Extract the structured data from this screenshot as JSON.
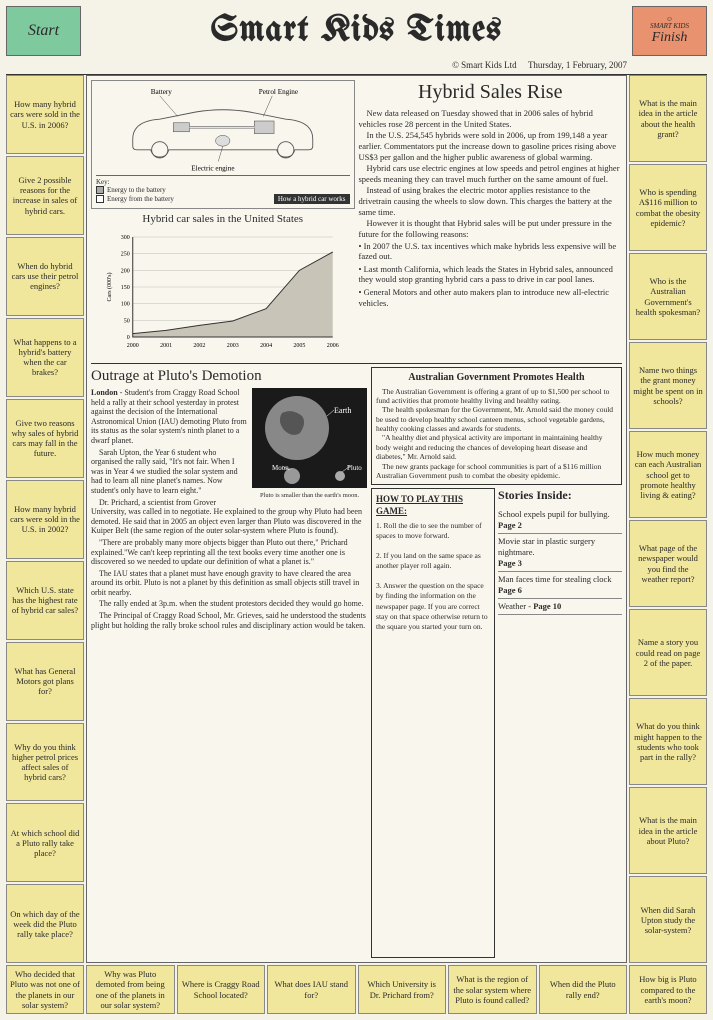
{
  "header": {
    "start": "Start",
    "title": "Smart Kids Times",
    "finish": "Finish",
    "logo_text": "SMART KIDS",
    "copyright": "© Smart Kids Ltd",
    "date": "Thursday, 1 February, 2007"
  },
  "left_questions": [
    "How many hybrid cars were sold in the U.S. in 2006?",
    "Give 2 possible reasons for the increase in sales of hybrid cars.",
    "When do hybrid cars use their petrol engines?",
    "What happens to a hybrid's battery when the car brakes?",
    "Give two reasons why sales of hybrid cars may fall in the future.",
    "How many hybrid cars were sold in the U.S. in 2002?",
    "Which U.S. state has the highest rate of hybrid car sales?",
    "What has General Motors got plans for?",
    "Why do you think higher petrol prices affect sales of hybrid cars?",
    "At which school did a Pluto rally take place?",
    "On which day of the week did the Pluto rally take place?",
    "Who decided that Pluto was not one of the planets in our solar system?"
  ],
  "right_questions": [
    "What is the main idea in the article about the health grant?",
    "Who is spending A$116 million to combat the obesity epidemic?",
    "Who is the Australian Government's health spokesman?",
    "Name two things the grant money might be spent on in schools?",
    "How much money can each Australian school get to promote healthy living & eating?",
    "What page of the newspaper would you find the weather report?",
    "Name a story you could read on page 2 of the paper.",
    "What do you think might happen to the students who took part in the rally?",
    "What is the main idea in the article about Pluto?",
    "When did Sarah Upton study the solar-system?",
    "How big is Pluto compared to the earth's moon?"
  ],
  "bottom_questions": [
    "Why was Pluto demoted from being one of the planets in our solar system?",
    "Where is Craggy Road School located?",
    "What does IAU stand for?",
    "Which University is Dr. Prichard from?",
    "What is the region of the solar system where Pluto is found called?",
    "When did the Pluto rally end?"
  ],
  "diagram": {
    "battery_label": "Battery",
    "petrol_label": "Petrol Engine",
    "electric_label": "Electric engine",
    "key_label": "Key:",
    "key1": "Energy to the battery",
    "key2": "Energy from the battery",
    "caption": "How a hybrid car works",
    "key1_color": "#aaaaaa",
    "key2_color": "#ffffff"
  },
  "hybrid": {
    "title": "Hybrid Sales Rise",
    "p1": "New data released on Tuesday showed that in 2006 sales of hybrid vehicles rose 28 percent in the United States.",
    "p2": "In the U.S. 254,545 hybrids were sold in 2006, up from 199,148 a year earlier. Commentators put the increase down to gasoline prices rising above US$3 per gallon and the higher public awareness of global warming.",
    "p3": "Hybrid cars use electric engines at low speeds and petrol engines at higher speeds meaning they can travel much further on the same amount of fuel.",
    "p4": "Instead of using brakes the electric motor applies resistance to the drivetrain causing the wheels to slow down. This charges the battery at the same time.",
    "p5": "However it is thought that Hybrid sales will be put under pressure in the future for the following reasons:",
    "b1": "• In 2007 the U.S. tax incentives which make hybrids less expensive will be fazed out.",
    "b2": "• Last month California, which leads the States in Hybrid sales, announced they would stop granting hybrid cars a pass to drive in car pool lanes.",
    "b3": "• General Motors and other auto makers plan to introduce new all-electric vehicles."
  },
  "chart": {
    "title": "Hybrid car sales in the United States",
    "ylabel": "Cars (000's)",
    "years": [
      "2000",
      "2001",
      "2002",
      "2003",
      "2004",
      "2005",
      "2006"
    ],
    "values": [
      10,
      20,
      35,
      48,
      85,
      200,
      255
    ],
    "ymax": 300,
    "ytick": 50,
    "fill_color": "#c8c5b8",
    "line_color": "#333333",
    "grid_color": "#999999"
  },
  "pluto": {
    "title": "Outrage at Pluto's Demotion",
    "p1_lead": "London",
    "p1": " - Student's from Craggy Road School held a rally at their school yesterday in protest against the decision of the International Astronomical Union (IAU) demoting Pluto from its status as the solar system's ninth planet to a dwarf planet.",
    "p2": "Sarah Upton, the Year 6 student who organised the rally said, \"It's not fair. When I was in Year 4 we studied the solar system and had to learn all nine planet's names. Now student's only have to learn eight.\"",
    "p3": "Dr. Prichard, a scientist from Grover University, was called in to negotiate. He explained to the group why Pluto had been demoted. He said that in 2005 an object even larger than Pluto was discovered in the Kuiper Belt (the same region of the outer solar-system where Pluto is found).",
    "p4": "\"There are probably many more objects bigger than Pluto out there,\" Prichard explained.\"We can't keep reprinting all the text books every time another one is discovered so we needed to update our definition of what a planet is.\"",
    "p5": "The IAU states that a planet must have enough gravity to have cleared the area around its orbit. Pluto is not a planet by this definition as small objects still travel in orbit nearby.",
    "p6": "The rally ended at 3p.m. when the student protestors decided they would go home.",
    "p7": "The Principal of Craggy Road School, Mr. Grieves, said he understood the students plight but holding the rally broke school rules and disciplinary action would be taken.",
    "img_earth": "Earth",
    "img_moon": "Moon",
    "img_pluto": "Pluto",
    "img_cap": "Pluto is smaller than the earth's moon."
  },
  "health": {
    "title": "Australian Government Promotes Health",
    "p1": "The Australian Government is offering a grant of up to $1,500 per school to fund activities that promote healthy living and healthy eating.",
    "p2": "The health spokesman for the Government, Mr. Arnold said the money could be used to develop healthy school canteen menus, school vegetable gardens, healthy cooking classes and awards for students.",
    "p3": "\"A healthy diet and physical activity are important in maintaining healthy body weight and reducing the chances of developing heart disease and diabetes,\" Mr. Arnold said.",
    "p4": "The new grants package for school communities is part of a $116 million Australian Government push to combat the obesity epidemic."
  },
  "howto": {
    "title": "HOW TO PLAY THIS GAME:",
    "s1": "1. Roll the die to see the number of spaces to move forward.",
    "s2": "2. If you land on the same space as another player roll again.",
    "s3": "3. Answer the question on the space by finding the information on the newspaper page. If you are correct stay on that space otherwise return to the square you started your turn on."
  },
  "stories": {
    "title": "Stories Inside:",
    "s1": "School expels pupil for bullying.",
    "p1": "Page 2",
    "s2": "Movie star in plastic surgery nightmare.",
    "p2": "Page 3",
    "s3": "Man faces time for stealing clock",
    "p3": "Page 6",
    "s4": "Weather - ",
    "p4": "Page 10"
  }
}
